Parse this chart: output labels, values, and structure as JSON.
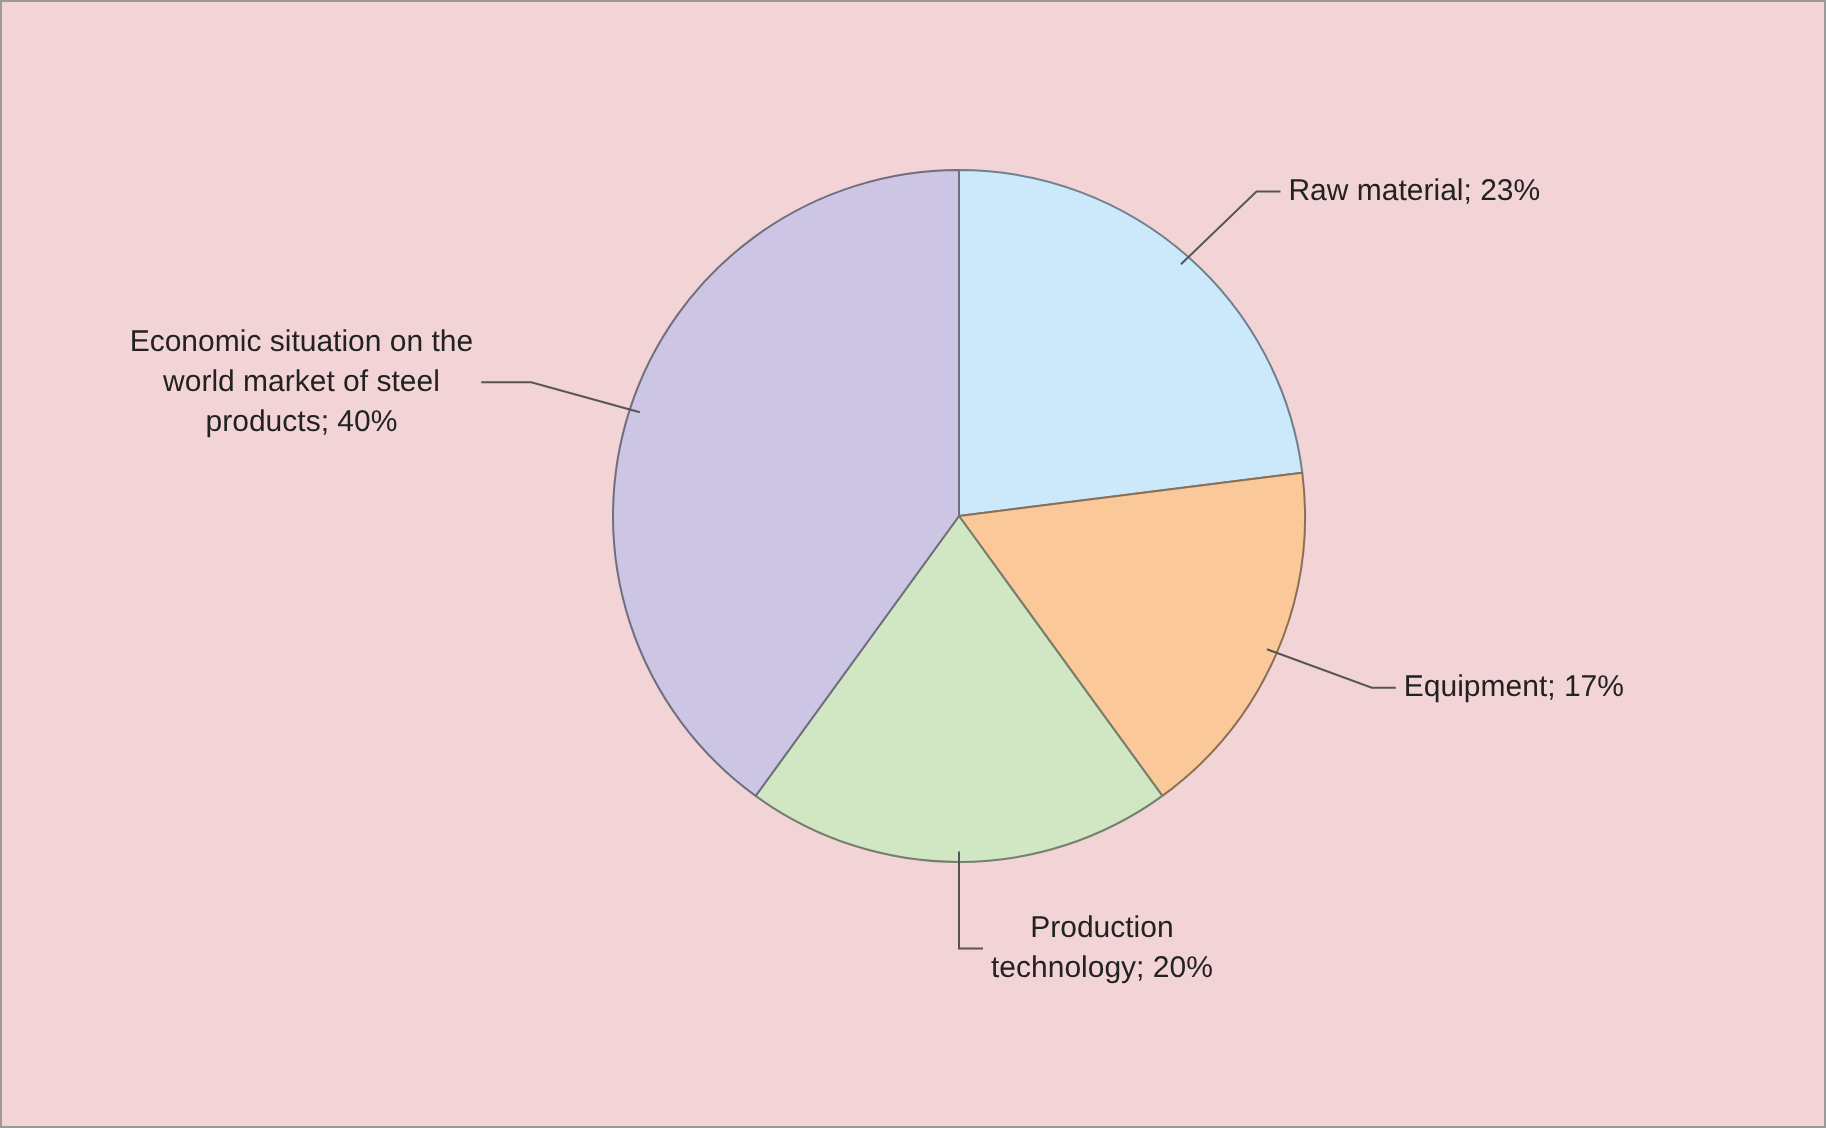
{
  "chart_data": {
    "type": "pie",
    "categories": [
      "Raw material",
      "Equipment",
      "Production technology",
      "Economic situation on the  world market of steel products"
    ],
    "value_labels": [
      "23%",
      "17%",
      "20%",
      "40%"
    ],
    "values": [
      23,
      17,
      20,
      40
    ],
    "colors": [
      "#cce9fb",
      "#fbc999",
      "#d1e7c4",
      "#ccc6e4"
    ],
    "legend": false
  }
}
